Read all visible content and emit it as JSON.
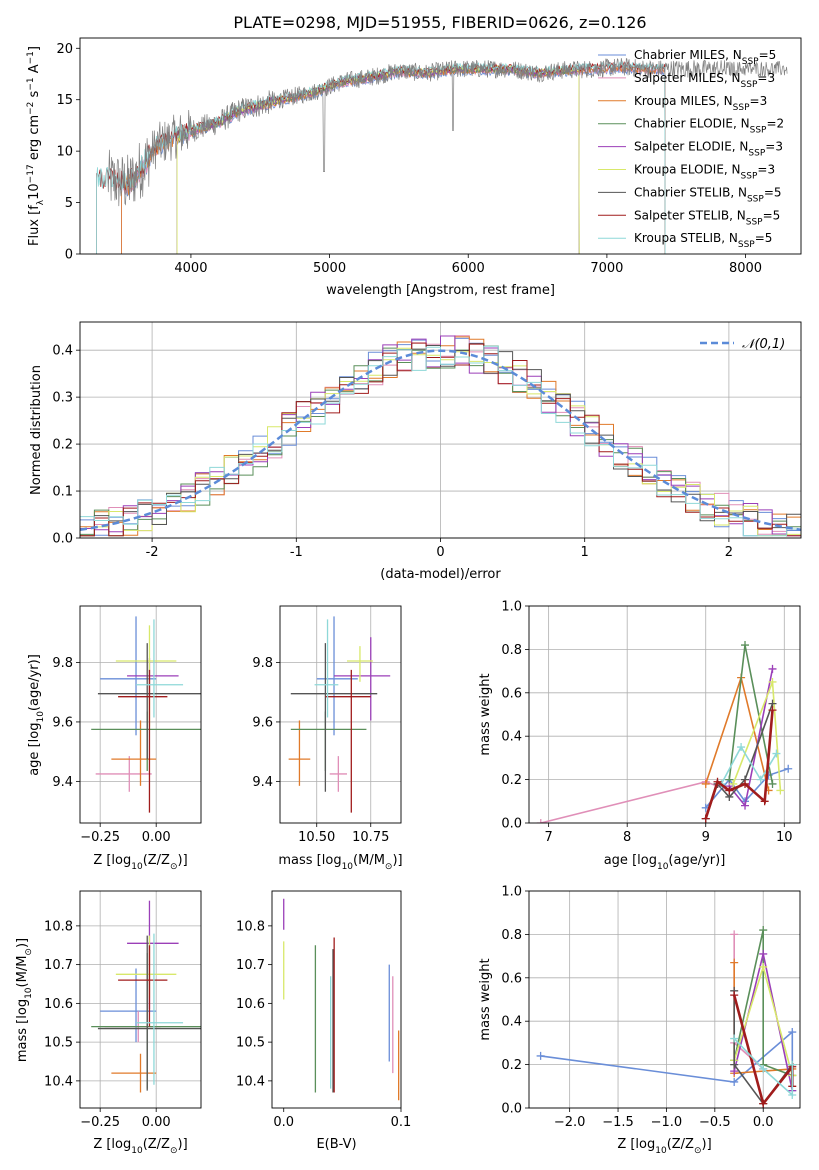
{
  "figure": {
    "title": "PLATE=0298, MJD=51955, FIBERID=0626, z=0.126"
  },
  "colors": {
    "Chabrier MILES": "#6a8ed8",
    "Salpeter MILES": "#e08fb8",
    "Kroupa MILES": "#e07a2a",
    "Chabrier ELODIE": "#5a8f5a",
    "Salpeter ELODIE": "#9b3fb8",
    "Kroupa ELODIE": "#d8e86a",
    "Chabrier STELIB": "#555555",
    "Salpeter STELIB": "#a01c1c",
    "Kroupa STELIB": "#8ed8d8",
    "data": "#808080",
    "normal": "#5b8bd8"
  },
  "chart_data": [
    {
      "panel": "spectrum",
      "type": "line",
      "xlabel": "wavelength [Angstrom, rest frame]",
      "ylabel": "Flux [f_λ10^-17 erg cm^-2 s^-1 A^-1]",
      "ylabel_parts": {
        "a": "Flux [f",
        "b": "λ",
        "c": "10",
        "d": "−17",
        "e": " erg cm",
        "f": "−2",
        "g": " s",
        "h": "−1",
        "i": " A",
        "j": "−1",
        "k": "]"
      },
      "xlim": [
        3200,
        8400
      ],
      "ylim": [
        0,
        21
      ],
      "xticks": [
        4000,
        5000,
        6000,
        7000,
        8000
      ],
      "yticks": [
        0,
        5,
        10,
        15,
        20
      ],
      "legend_placement": "upper right",
      "legend": [
        {
          "name": "Chabrier MILES",
          "nssp": "5"
        },
        {
          "name": "Salpeter MILES",
          "nssp": "3"
        },
        {
          "name": "Kroupa MILES",
          "nssp": "3"
        },
        {
          "name": "Chabrier ELODIE",
          "nssp": "2"
        },
        {
          "name": "Salpeter ELODIE",
          "nssp": "3"
        },
        {
          "name": "Kroupa ELODIE",
          "nssp": "3"
        },
        {
          "name": "Chabrier STELIB",
          "nssp": "5"
        },
        {
          "name": "Salpeter STELIB",
          "nssp": "5"
        },
        {
          "name": "Kroupa STELIB",
          "nssp": "5"
        }
      ],
      "continuum": {
        "x": [
          3400,
          3550,
          3650,
          3750,
          3850,
          3950,
          4050,
          4200,
          4350,
          4500,
          4700,
          4900,
          5100,
          5300,
          5500,
          5700,
          5900,
          6100,
          6300,
          6500,
          6700,
          6900,
          7100,
          7300,
          7450
        ],
        "y": [
          7.2,
          6.8,
          8.5,
          10.5,
          11.2,
          11.8,
          12.2,
          12.8,
          14.0,
          14.5,
          15.2,
          15.8,
          16.8,
          17.2,
          17.8,
          17.6,
          18.0,
          18.0,
          18.0,
          17.6,
          17.9,
          18.0,
          18.2,
          18.0,
          18.0
        ]
      },
      "model_ranges": {
        "MILES": [
          3500,
          7420
        ],
        "ELODIE": [
          3900,
          6800
        ],
        "STELIB": [
          3320,
          7420
        ]
      }
    },
    {
      "panel": "residuals",
      "type": "bar",
      "xlabel": "(data-model)/error",
      "ylabel": "Normed distribution",
      "xlim": [
        -2.5,
        2.5
      ],
      "ylim": [
        0,
        0.46
      ],
      "xticks": [
        -2,
        -1,
        0,
        1,
        2
      ],
      "yticks": [
        0.0,
        0.1,
        0.2,
        0.3,
        0.4
      ],
      "legend": "𝒩(0,1)",
      "legend_placement": "upper right",
      "bin_width": 0.1,
      "normal": {
        "mu": 0,
        "sigma": 1
      }
    },
    {
      "panel": "age-vs-Z",
      "type": "scatter",
      "xlabel": "Z [log10(Z/Z⊙)]",
      "xlabel_parts": {
        "a": "Z [log",
        "b": "10",
        "c": "(Z/Z",
        "d": "⊙",
        "e": ")]"
      },
      "ylabel": "age [log10(age/yr)]",
      "ylabel_parts": {
        "a": "age  [log",
        "b": "10",
        "c": "(age/yr)]"
      },
      "xlim": [
        -0.34,
        0.2
      ],
      "ylim": [
        9.26,
        9.99
      ],
      "xticks": [
        -0.25,
        0.0
      ],
      "xtick_labels": [
        "−0.25",
        "0.00"
      ],
      "yticks": [
        9.4,
        9.6,
        9.8
      ],
      "points": [
        {
          "series": "Chabrier MILES",
          "x": -0.09,
          "y": 9.745,
          "xerr": [
            0.16,
            0.09
          ],
          "yerr": [
            0.19,
            0.21
          ]
        },
        {
          "series": "Salpeter MILES",
          "x": -0.12,
          "y": 9.425,
          "xerr": [
            0.15,
            0.1
          ],
          "yerr": [
            0.06,
            0.06
          ]
        },
        {
          "series": "Kroupa MILES",
          "x": -0.07,
          "y": 9.475,
          "xerr": [
            0.13,
            0.07
          ],
          "yerr": [
            0.09,
            0.13
          ]
        },
        {
          "series": "Chabrier ELODIE",
          "x": -0.04,
          "y": 9.575,
          "xerr": [
            0.25,
            0.29
          ],
          "yerr": [
            0.14,
            0.06
          ]
        },
        {
          "series": "Salpeter ELODIE",
          "x": -0.03,
          "y": 9.755,
          "xerr": [
            0.1,
            0.13
          ],
          "yerr": [
            0.07,
            0.06
          ]
        },
        {
          "series": "Kroupa ELODIE",
          "x": -0.03,
          "y": 9.805,
          "xerr": [
            0.15,
            0.12
          ],
          "yerr": [
            0.22,
            0.12
          ]
        },
        {
          "series": "Chabrier STELIB",
          "x": -0.04,
          "y": 9.695,
          "xerr": [
            0.22,
            0.29
          ],
          "yerr": [
            0.22,
            0.17
          ]
        },
        {
          "series": "Salpeter STELIB",
          "x": -0.03,
          "y": 9.685,
          "xerr": [
            0.14,
            0.08
          ],
          "yerr": [
            0.39,
            0.09
          ]
        },
        {
          "series": "Kroupa STELIB",
          "x": -0.01,
          "y": 9.725,
          "xerr": [
            0.08,
            0.13
          ],
          "yerr": [
            0.11,
            0.22
          ]
        }
      ]
    },
    {
      "panel": "age-vs-mass",
      "type": "scatter",
      "xlabel": "mass [log10(M/M⊙)]",
      "xlabel_parts": {
        "a": "mass [log",
        "b": "10",
        "c": "(M/M",
        "d": "⊙",
        "e": ")]"
      },
      "xlim": [
        10.33,
        10.89
      ],
      "ylim": [
        9.26,
        9.99
      ],
      "xticks": [
        10.5,
        10.75
      ],
      "xtick_labels": [
        "10.50",
        "10.75"
      ],
      "yticks": [
        9.4,
        9.6,
        9.8
      ],
      "points": [
        {
          "series": "Chabrier MILES",
          "x": 10.58,
          "y": 9.745,
          "xerr": [
            0.08,
            0.11
          ],
          "yerr": [
            0.19,
            0.21
          ]
        },
        {
          "series": "Salpeter MILES",
          "x": 10.6,
          "y": 9.425,
          "xerr": [
            0.04,
            0.04
          ],
          "yerr": [
            0.06,
            0.06
          ]
        },
        {
          "series": "Kroupa MILES",
          "x": 10.42,
          "y": 9.475,
          "xerr": [
            0.05,
            0.05
          ],
          "yerr": [
            0.09,
            0.13
          ]
        },
        {
          "series": "Chabrier ELODIE",
          "x": 10.54,
          "y": 9.575,
          "xerr": [
            0.16,
            0.19
          ],
          "yerr": [
            0.14,
            0.06
          ]
        },
        {
          "series": "Salpeter ELODIE",
          "x": 10.75,
          "y": 9.755,
          "xerr": [
            0.17,
            0.09
          ],
          "yerr": [
            0.15,
            0.13
          ]
        },
        {
          "series": "Kroupa ELODIE",
          "x": 10.7,
          "y": 9.805,
          "xerr": [
            0.06,
            0.06
          ],
          "yerr": [
            0.07,
            0.05
          ]
        },
        {
          "series": "Chabrier STELIB",
          "x": 10.54,
          "y": 9.695,
          "xerr": [
            0.16,
            0.24
          ],
          "yerr": [
            0.33,
            0.17
          ]
        },
        {
          "series": "Salpeter STELIB",
          "x": 10.66,
          "y": 9.685,
          "xerr": [
            0.12,
            0.09
          ],
          "yerr": [
            0.39,
            0.09
          ]
        },
        {
          "series": "Kroupa STELIB",
          "x": 10.55,
          "y": 9.725,
          "xerr": [
            0.06,
            0.05
          ],
          "yerr": [
            0.11,
            0.22
          ]
        }
      ]
    },
    {
      "panel": "weight-vs-age",
      "type": "line",
      "xlabel": "age [log10(age/yr)]",
      "xlabel_parts": {
        "a": "age  [log",
        "b": "10",
        "c": "(age/yr)]"
      },
      "ylabel": "mass weight",
      "xlim": [
        6.75,
        10.2
      ],
      "ylim": [
        0,
        1.0
      ],
      "xticks": [
        7,
        8,
        9,
        10
      ],
      "yticks": [
        0.0,
        0.2,
        0.4,
        0.6,
        0.8,
        1.0
      ],
      "series": [
        {
          "name": "Salpeter MILES",
          "x": [
            6.9,
            9.0,
            9.3
          ],
          "y": [
            0.0,
            0.19,
            0.15
          ]
        },
        {
          "name": "Chabrier MILES",
          "x": [
            9.0,
            9.3,
            9.5,
            9.8,
            10.05
          ],
          "y": [
            0.07,
            0.2,
            0.1,
            0.22,
            0.25
          ]
        },
        {
          "name": "Kroupa MILES",
          "x": [
            9.0,
            9.45,
            9.8
          ],
          "y": [
            0.18,
            0.67,
            0.15
          ]
        },
        {
          "name": "Chabrier ELODIE",
          "x": [
            9.3,
            9.5,
            9.85
          ],
          "y": [
            0.2,
            0.82,
            0.18
          ]
        },
        {
          "name": "Salpeter ELODIE",
          "x": [
            9.3,
            9.5,
            9.85
          ],
          "y": [
            0.17,
            0.08,
            0.71
          ]
        },
        {
          "name": "Kroupa ELODIE",
          "x": [
            9.35,
            9.85,
            9.95
          ],
          "y": [
            0.18,
            0.65,
            0.15
          ]
        },
        {
          "name": "Chabrier STELIB",
          "x": [
            9.0,
            9.15,
            9.3,
            9.5,
            9.85
          ],
          "y": [
            0.02,
            0.18,
            0.12,
            0.2,
            0.55
          ]
        },
        {
          "name": "Kroupa STELIB",
          "x": [
            9.2,
            9.45,
            9.7,
            9.9
          ],
          "y": [
            0.18,
            0.35,
            0.2,
            0.32
          ]
        },
        {
          "name": "Salpeter STELIB",
          "x": [
            9.0,
            9.15,
            9.3,
            9.5,
            9.75,
            9.85
          ],
          "y": [
            0.02,
            0.19,
            0.15,
            0.18,
            0.1,
            0.52
          ]
        }
      ]
    },
    {
      "panel": "mass-vs-Z",
      "type": "scatter",
      "xlabel": "Z [log10(Z/Z⊙)]",
      "xlabel_parts": {
        "a": "Z [log",
        "b": "10",
        "c": "(Z/Z",
        "d": "⊙",
        "e": ")]"
      },
      "ylabel": "mass [log10(M/M⊙)]",
      "ylabel_parts": {
        "a": "mass [log",
        "b": "10",
        "c": "(M/M",
        "d": "⊙",
        "e": ")]"
      },
      "xlim": [
        -0.34,
        0.2
      ],
      "ylim": [
        10.33,
        10.89
      ],
      "xticks": [
        -0.25,
        0.0
      ],
      "xtick_labels": [
        "−0.25",
        "0.00"
      ],
      "yticks": [
        10.4,
        10.5,
        10.6,
        10.7,
        10.8
      ],
      "points": [
        {
          "series": "Chabrier MILES",
          "x": -0.09,
          "y": 10.58,
          "xerr": [
            0.16,
            0.09
          ],
          "yerr": [
            0.08,
            0.11
          ]
        },
        {
          "series": "Salpeter MILES",
          "x": -0.08,
          "y": 10.54,
          "xerr": [
            0.15,
            0.1
          ],
          "yerr": [
            0.04,
            0.04
          ]
        },
        {
          "series": "Kroupa MILES",
          "x": -0.07,
          "y": 10.42,
          "xerr": [
            0.13,
            0.07
          ],
          "yerr": [
            0.05,
            0.05
          ]
        },
        {
          "series": "Chabrier ELODIE",
          "x": -0.04,
          "y": 10.54,
          "xerr": [
            0.25,
            0.29
          ],
          "yerr": [
            0.16,
            0.19
          ]
        },
        {
          "series": "Salpeter ELODIE",
          "x": -0.03,
          "y": 10.755,
          "xerr": [
            0.1,
            0.13
          ],
          "yerr": [
            0.17,
            0.11
          ]
        },
        {
          "series": "Kroupa ELODIE",
          "x": -0.03,
          "y": 10.675,
          "xerr": [
            0.15,
            0.12
          ],
          "yerr": [
            0.06,
            0.1
          ]
        },
        {
          "series": "Chabrier STELIB",
          "x": -0.04,
          "y": 10.535,
          "xerr": [
            0.22,
            0.29
          ],
          "yerr": [
            0.16,
            0.24
          ]
        },
        {
          "series": "Salpeter STELIB",
          "x": -0.03,
          "y": 10.66,
          "xerr": [
            0.14,
            0.08
          ],
          "yerr": [
            0.12,
            0.09
          ]
        },
        {
          "series": "Kroupa STELIB",
          "x": -0.01,
          "y": 10.55,
          "xerr": [
            0.08,
            0.13
          ],
          "yerr": [
            0.16,
            0.23
          ]
        }
      ]
    },
    {
      "panel": "mass-vs-EBV",
      "type": "scatter",
      "xlabel": "E(B-V)",
      "xlim": [
        -0.01,
        0.1
      ],
      "ylim": [
        10.33,
        10.89
      ],
      "xticks": [
        0.0,
        0.1
      ],
      "xtick_labels": [
        "0.0",
        "0.1"
      ],
      "yticks": [
        10.4,
        10.5,
        10.6,
        10.7,
        10.8
      ],
      "points": [
        {
          "series": "Chabrier MILES",
          "x": 0.09,
          "y": 10.58,
          "yerr": [
            0.13,
            0.12
          ]
        },
        {
          "series": "Salpeter MILES",
          "x": 0.093,
          "y": 10.54,
          "yerr": [
            0.12,
            0.13
          ]
        },
        {
          "series": "Kroupa MILES",
          "x": 0.098,
          "y": 10.44,
          "yerr": [
            0.09,
            0.09
          ]
        },
        {
          "series": "Chabrier ELODIE",
          "x": 0.027,
          "y": 10.56,
          "yerr": [
            0.19,
            0.19
          ]
        },
        {
          "series": "Salpeter ELODIE",
          "x": 0.0,
          "y": 10.83,
          "yerr": [
            0.04,
            0.04
          ]
        },
        {
          "series": "Kroupa ELODIE",
          "x": 0.0,
          "y": 10.68,
          "yerr": [
            0.07,
            0.08
          ]
        },
        {
          "series": "Chabrier STELIB",
          "x": 0.042,
          "y": 10.56,
          "yerr": [
            0.19,
            0.18
          ]
        },
        {
          "series": "Salpeter STELIB",
          "x": 0.043,
          "y": 10.57,
          "yerr": [
            0.2,
            0.2
          ]
        },
        {
          "series": "Kroupa STELIB",
          "x": 0.04,
          "y": 10.56,
          "yerr": [
            0.18,
            0.11
          ]
        }
      ]
    },
    {
      "panel": "weight-vs-Z",
      "type": "line",
      "xlabel": "Z [log10(Z/Z⊙)]",
      "xlabel_parts": {
        "a": "Z [log",
        "b": "10",
        "c": "(Z/Z",
        "d": "⊙",
        "e": ")]"
      },
      "ylabel": "mass weight",
      "xlim": [
        -2.42,
        0.38
      ],
      "ylim": [
        0,
        1.0
      ],
      "xticks": [
        -2.0,
        -1.5,
        -1.0,
        -0.5,
        0.0
      ],
      "xtick_labels": [
        "−2.0",
        "−1.5",
        "−1.0",
        "−0.5",
        "0.0"
      ],
      "yticks": [
        0.0,
        0.2,
        0.4,
        0.6,
        0.8,
        1.0
      ],
      "series": [
        {
          "name": "Chabrier MILES",
          "x": [
            -2.3,
            -0.3,
            0.3,
            0.3
          ],
          "y": [
            0.24,
            0.12,
            0.35,
            0.08
          ]
        },
        {
          "name": "Salpeter MILES",
          "x": [
            -0.3,
            -0.3,
            0.0
          ],
          "y": [
            0.8,
            0.3,
            0.18
          ]
        },
        {
          "name": "Kroupa MILES",
          "x": [
            -0.3,
            -0.3,
            0.3
          ],
          "y": [
            0.67,
            0.16,
            0.18
          ]
        },
        {
          "name": "Chabrier ELODIE",
          "x": [
            -0.3,
            0.0,
            0.0,
            0.3
          ],
          "y": [
            0.22,
            0.82,
            0.2,
            0.15
          ]
        },
        {
          "name": "Salpeter ELODIE",
          "x": [
            -0.3,
            0.0,
            0.3
          ],
          "y": [
            0.17,
            0.71,
            0.08
          ]
        },
        {
          "name": "Kroupa ELODIE",
          "x": [
            -0.3,
            0.0,
            0.3
          ],
          "y": [
            0.22,
            0.65,
            0.15
          ]
        },
        {
          "name": "Chabrier STELIB",
          "x": [
            -0.3,
            -0.3,
            0.0,
            0.3
          ],
          "y": [
            0.54,
            0.2,
            0.02,
            0.2
          ]
        },
        {
          "name": "Salpeter STELIB",
          "x": [
            -0.3,
            0.0,
            0.3,
            0.3
          ],
          "y": [
            0.52,
            0.02,
            0.19,
            0.1
          ]
        },
        {
          "name": "Kroupa STELIB",
          "x": [
            -0.3,
            0.0,
            0.3,
            0.3
          ],
          "y": [
            0.32,
            0.18,
            0.06,
            0.2
          ]
        }
      ]
    }
  ]
}
